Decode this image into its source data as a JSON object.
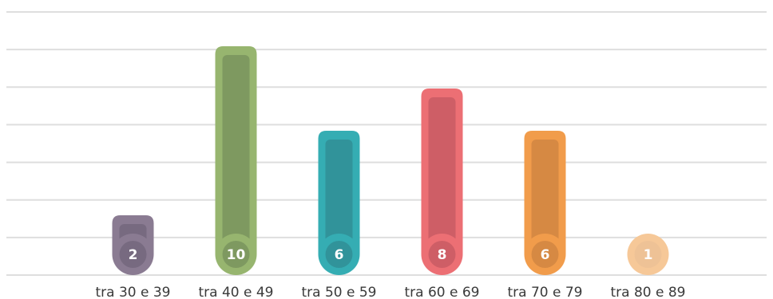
{
  "chart_data": {
    "type": "bar",
    "title": "",
    "xlabel": "",
    "ylabel": "",
    "categories": [
      "tra 30 e 39",
      "tra 40 e 49",
      "tra 50 e 59",
      "tra 60 e 69",
      "tra 70 e 79",
      "tra 80 e 89"
    ],
    "values": [
      2,
      10,
      6,
      8,
      6,
      1
    ],
    "value_labels": [
      "2",
      "10",
      "6",
      "8",
      "6",
      "1"
    ],
    "ylim": [
      0,
      11
    ],
    "grid": true,
    "bar_colors": [
      "#8A7B92",
      "#97B56F",
      "#35ADB3",
      "#EC6F74",
      "#F19C4B",
      "#F6C898"
    ],
    "bar_inner_colors": [
      "#776A80",
      "#7E9960",
      "#31939A",
      "#CE5E66",
      "#D68943",
      "#EEC296"
    ],
    "grid_color": "#DEDEDE"
  }
}
